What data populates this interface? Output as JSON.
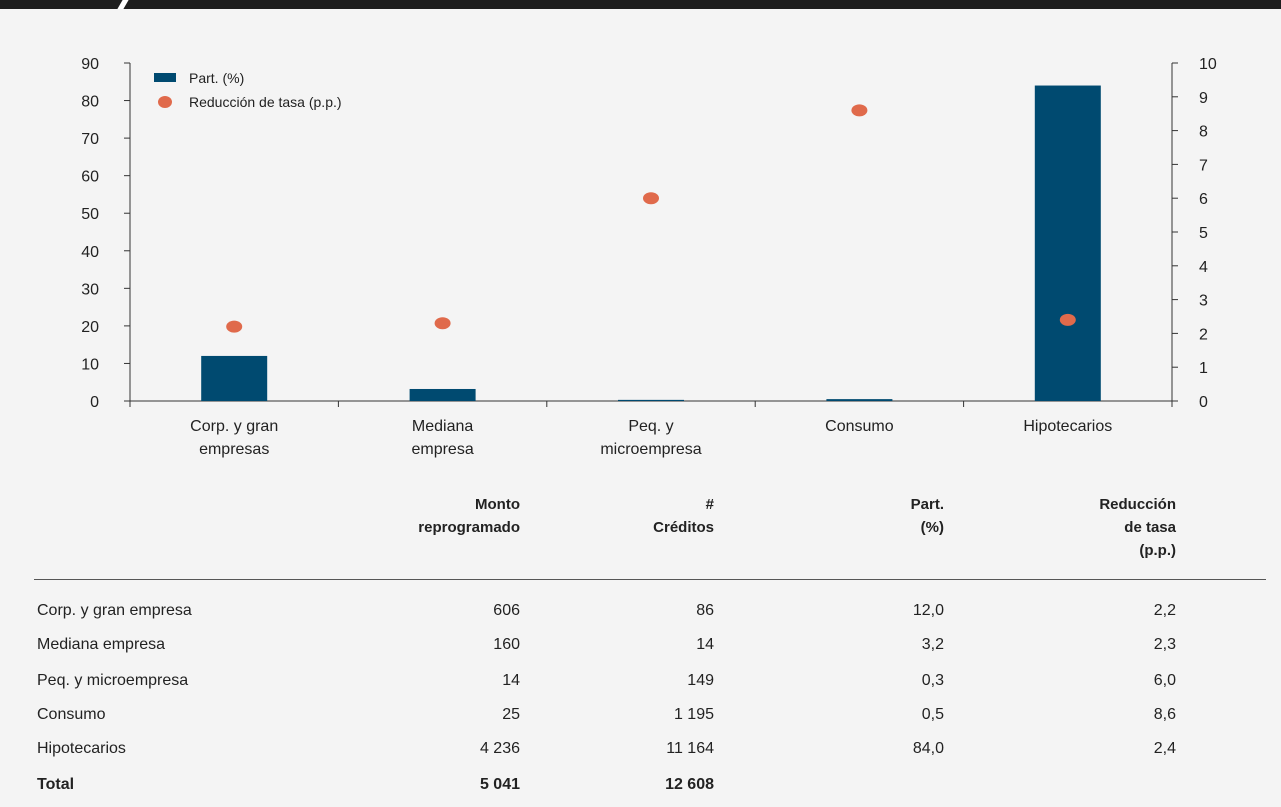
{
  "chart_data": {
    "type": "bar",
    "categories": [
      [
        "Corp. y  gran",
        "empresas"
      ],
      [
        "Mediana",
        "empresa"
      ],
      [
        "Peq. y",
        "microempresa"
      ],
      [
        "Consumo"
      ],
      [
        "Hipotecarios"
      ]
    ],
    "series": [
      {
        "name": "Part. (%)",
        "type": "bar",
        "axis": "left",
        "values": [
          12.0,
          3.2,
          0.3,
          0.5,
          84.0
        ],
        "color": "#004a70"
      },
      {
        "name": "Reducción de tasa (p.p.)",
        "type": "scatter",
        "axis": "right",
        "values": [
          2.2,
          2.3,
          6.0,
          8.6,
          2.4
        ],
        "color": "#e06a4b"
      }
    ],
    "y_left": {
      "min": 0,
      "max": 90,
      "ticks": [
        0,
        10,
        20,
        30,
        40,
        50,
        60,
        70,
        80,
        90
      ]
    },
    "y_right": {
      "min": 0,
      "max": 10,
      "ticks": [
        0,
        1,
        2,
        3,
        4,
        5,
        6,
        7,
        8,
        9,
        10
      ]
    },
    "legend_position": "top-left",
    "grid": false
  },
  "table": {
    "headers": [
      [
        "Monto",
        "reprogramado"
      ],
      [
        "#",
        "Créditos"
      ],
      [
        "Part.",
        "(%)"
      ],
      [
        "Reducción",
        "de tasa",
        "(p.p.)"
      ]
    ],
    "rows": [
      {
        "label": "Corp. y gran empresa",
        "cells": [
          "606",
          "86",
          "12,0",
          "2,2"
        ]
      },
      {
        "label": "Mediana empresa",
        "cells": [
          "160",
          "14",
          "3,2",
          "2,3"
        ]
      },
      {
        "label": "Peq. y microempresa",
        "cells": [
          "14",
          "149",
          "0,3",
          "6,0"
        ]
      },
      {
        "label": "Consumo",
        "cells": [
          "25",
          "1 195",
          "0,5",
          "8,6"
        ]
      },
      {
        "label": "Hipotecarios",
        "cells": [
          "4 236",
          "11 164",
          "84,0",
          "2,4"
        ]
      }
    ],
    "total": {
      "label": "Total",
      "cells": [
        "5 041",
        "12 608",
        "",
        ""
      ]
    }
  }
}
